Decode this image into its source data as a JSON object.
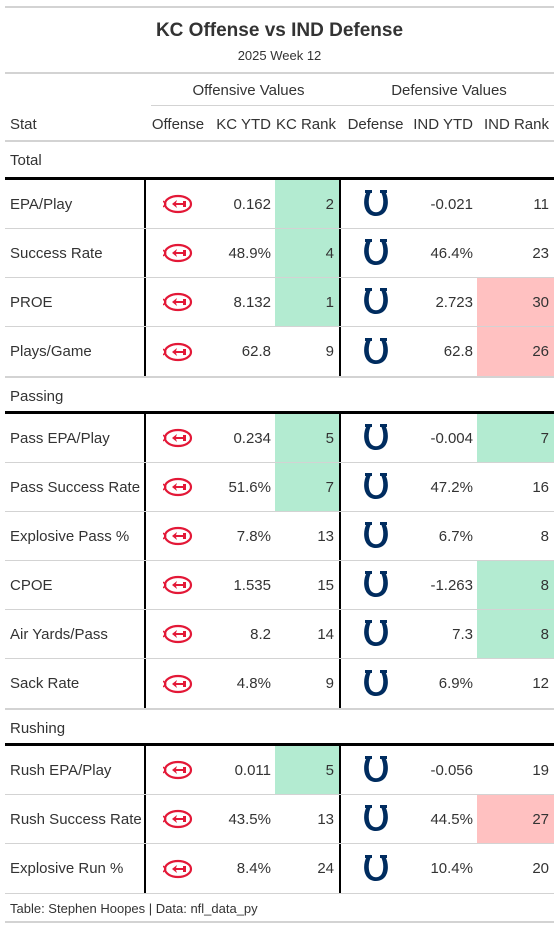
{
  "header": {
    "title": "KC Offense vs IND Defense",
    "subtitle": "2025 Week 12",
    "spanner_offense": "Offensive Values",
    "spanner_defense": "Defensive Values"
  },
  "columns": {
    "stat": "Stat",
    "offense": "Offense",
    "kc_ytd": "KC YTD",
    "kc_rank": "KC Rank",
    "defense": "Defense",
    "ind_ytd": "IND YTD",
    "ind_rank": "IND Rank"
  },
  "colors": {
    "good": "#b3ebd1",
    "bad": "#ffc1c1",
    "chiefs_red": "#e31837",
    "colts_blue": "#002c5f"
  },
  "icons": {
    "offense": "chiefs-logo-icon",
    "defense": "colts-horseshoe-icon"
  },
  "groups": [
    {
      "label": "Total",
      "rows": [
        {
          "stat": "EPA/Play",
          "kc_ytd": "0.162",
          "kc_rank": "2",
          "kc_rank_color": "good",
          "ind_ytd": "-0.021",
          "ind_rank": "11",
          "ind_rank_color": "none"
        },
        {
          "stat": "Success Rate",
          "kc_ytd": "48.9%",
          "kc_rank": "4",
          "kc_rank_color": "good",
          "ind_ytd": "46.4%",
          "ind_rank": "23",
          "ind_rank_color": "none"
        },
        {
          "stat": "PROE",
          "kc_ytd": "8.132",
          "kc_rank": "1",
          "kc_rank_color": "good",
          "ind_ytd": "2.723",
          "ind_rank": "30",
          "ind_rank_color": "bad"
        },
        {
          "stat": "Plays/Game",
          "kc_ytd": "62.8",
          "kc_rank": "9",
          "kc_rank_color": "none",
          "ind_ytd": "62.8",
          "ind_rank": "26",
          "ind_rank_color": "bad"
        }
      ]
    },
    {
      "label": "Passing",
      "rows": [
        {
          "stat": "Pass EPA/Play",
          "kc_ytd": "0.234",
          "kc_rank": "5",
          "kc_rank_color": "good",
          "ind_ytd": "-0.004",
          "ind_rank": "7",
          "ind_rank_color": "good"
        },
        {
          "stat": "Pass Success Rate",
          "kc_ytd": "51.6%",
          "kc_rank": "7",
          "kc_rank_color": "good",
          "ind_ytd": "47.2%",
          "ind_rank": "16",
          "ind_rank_color": "none"
        },
        {
          "stat": "Explosive Pass %",
          "kc_ytd": "7.8%",
          "kc_rank": "13",
          "kc_rank_color": "none",
          "ind_ytd": "6.7%",
          "ind_rank": "8",
          "ind_rank_color": "none"
        },
        {
          "stat": "CPOE",
          "kc_ytd": "1.535",
          "kc_rank": "15",
          "kc_rank_color": "none",
          "ind_ytd": "-1.263",
          "ind_rank": "8",
          "ind_rank_color": "good"
        },
        {
          "stat": "Air Yards/Pass",
          "kc_ytd": "8.2",
          "kc_rank": "14",
          "kc_rank_color": "none",
          "ind_ytd": "7.3",
          "ind_rank": "8",
          "ind_rank_color": "good"
        },
        {
          "stat": "Sack Rate",
          "kc_ytd": "4.8%",
          "kc_rank": "9",
          "kc_rank_color": "none",
          "ind_ytd": "6.9%",
          "ind_rank": "12",
          "ind_rank_color": "none"
        }
      ]
    },
    {
      "label": "Rushing",
      "rows": [
        {
          "stat": "Rush EPA/Play",
          "kc_ytd": "0.011",
          "kc_rank": "5",
          "kc_rank_color": "good",
          "ind_ytd": "-0.056",
          "ind_rank": "19",
          "ind_rank_color": "none"
        },
        {
          "stat": "Rush Success Rate",
          "kc_ytd": "43.5%",
          "kc_rank": "13",
          "kc_rank_color": "none",
          "ind_ytd": "44.5%",
          "ind_rank": "27",
          "ind_rank_color": "bad"
        },
        {
          "stat": "Explosive Run %",
          "kc_ytd": "8.4%",
          "kc_rank": "24",
          "kc_rank_color": "none",
          "ind_ytd": "10.4%",
          "ind_rank": "20",
          "ind_rank_color": "none"
        }
      ]
    }
  ],
  "footer": {
    "source": "Table: Stephen Hoopes | Data: nfl_data_py"
  }
}
